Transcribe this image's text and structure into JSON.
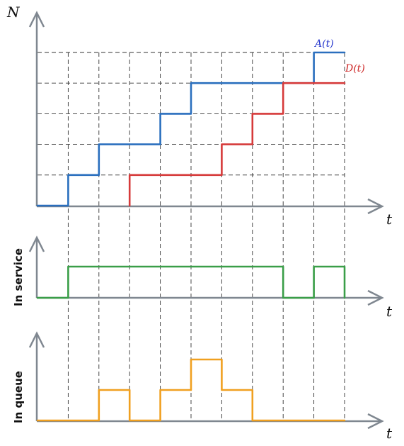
{
  "labels": {
    "y_main": "N",
    "t_main": "t",
    "t_service": "t",
    "t_queue": "t",
    "arrivals": "A(t)",
    "departures": "D(t)",
    "in_service": "In service",
    "in_queue": "In queue"
  },
  "colors": {
    "axis": "#7f8790",
    "arrivals": "#2a6fbe",
    "departures": "#d63a3a",
    "in_service": "#3a9e48",
    "in_queue": "#f0a020",
    "guide": "#333333",
    "label_arrivals": "#2233cc",
    "label_departures": "#cc2222"
  },
  "chart_data": [
    {
      "type": "line",
      "step": true,
      "series": [
        {
          "name": "A(t)",
          "points": [
            [
              0,
              0
            ],
            [
              1,
              0
            ],
            [
              1,
              1
            ],
            [
              2,
              1
            ],
            [
              2,
              2
            ],
            [
              4,
              2
            ],
            [
              4,
              3
            ],
            [
              5,
              3
            ],
            [
              5,
              4
            ],
            [
              9,
              4
            ],
            [
              9,
              5
            ],
            [
              10,
              5
            ]
          ]
        },
        {
          "name": "D(t)",
          "points": [
            [
              3,
              0
            ],
            [
              3,
              1
            ],
            [
              6,
              1
            ],
            [
              6,
              2
            ],
            [
              7,
              2
            ],
            [
              7,
              3
            ],
            [
              8,
              3
            ],
            [
              8,
              4
            ],
            [
              10,
              4
            ]
          ]
        }
      ],
      "event_times": [
        1,
        2,
        3,
        4,
        5,
        6,
        7,
        8,
        9,
        10
      ]
    },
    {
      "type": "line",
      "step": true,
      "series": [
        {
          "name": "In service",
          "points": [
            [
              0,
              0
            ],
            [
              1,
              0
            ],
            [
              1,
              1
            ],
            [
              8,
              1
            ],
            [
              8,
              0
            ],
            [
              9,
              0
            ],
            [
              9,
              1
            ],
            [
              10,
              1
            ],
            [
              10,
              0
            ]
          ]
        }
      ]
    },
    {
      "type": "line",
      "step": true,
      "series": [
        {
          "name": "In queue",
          "points": [
            [
              0,
              0
            ],
            [
              2,
              0
            ],
            [
              2,
              1
            ],
            [
              3,
              1
            ],
            [
              3,
              0
            ],
            [
              4,
              0
            ],
            [
              4,
              1
            ],
            [
              5,
              1
            ],
            [
              5,
              2
            ],
            [
              6,
              2
            ],
            [
              6,
              1
            ],
            [
              7,
              1
            ],
            [
              7,
              0
            ],
            [
              10,
              0
            ]
          ]
        }
      ]
    }
  ]
}
